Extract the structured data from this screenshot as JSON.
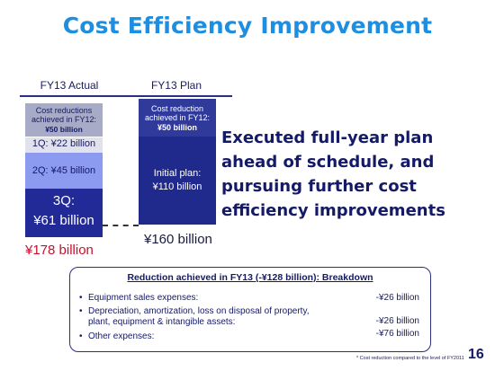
{
  "title": "Cost Efficiency Improvement",
  "columns": {
    "actual_label": "FY13 Actual",
    "plan_label": "FY13 Plan"
  },
  "actual_bar": {
    "fy12_line1": "Cost reductions",
    "fy12_line2": "achieved in FY12:",
    "fy12_value": "¥50 billion",
    "q1": "1Q: ¥22 billion",
    "q2": "2Q: ¥45 billion",
    "q3_label": "3Q:",
    "q3_value": "¥61 billion",
    "total": "¥178 billion"
  },
  "plan_bar": {
    "fy12_line1": "Cost reduction",
    "fy12_line2": "achieved in FY12:",
    "fy12_value": "¥50 billion",
    "initial_line1": "Initial plan:",
    "initial_line2": "¥110 billion",
    "total": "¥160 billion"
  },
  "message": {
    "line1": "Executed full-year plan",
    "line2": "ahead of schedule, and",
    "line3": "pursuing further cost",
    "line4": "efficiency improvements"
  },
  "breakdown": {
    "title": "Reduction achieved in FY13 (-¥128 billion): Breakdown",
    "items": [
      {
        "label": "Equipment sales expenses:",
        "value": "-¥26 billion"
      },
      {
        "label_line1": "Depreciation, amortization, loss on disposal of property,",
        "label_line2": "plant, equipment & intangible assets:",
        "value": "-¥26 billion"
      },
      {
        "label": "Other expenses:",
        "value": "-¥76 billion"
      }
    ]
  },
  "footnote": "* Cost reduction compared to the level of FY2011",
  "page_number": "16",
  "colors": {
    "title": "#1e8fe0",
    "navy": "#141a66",
    "total_actual": "#c8102e"
  }
}
